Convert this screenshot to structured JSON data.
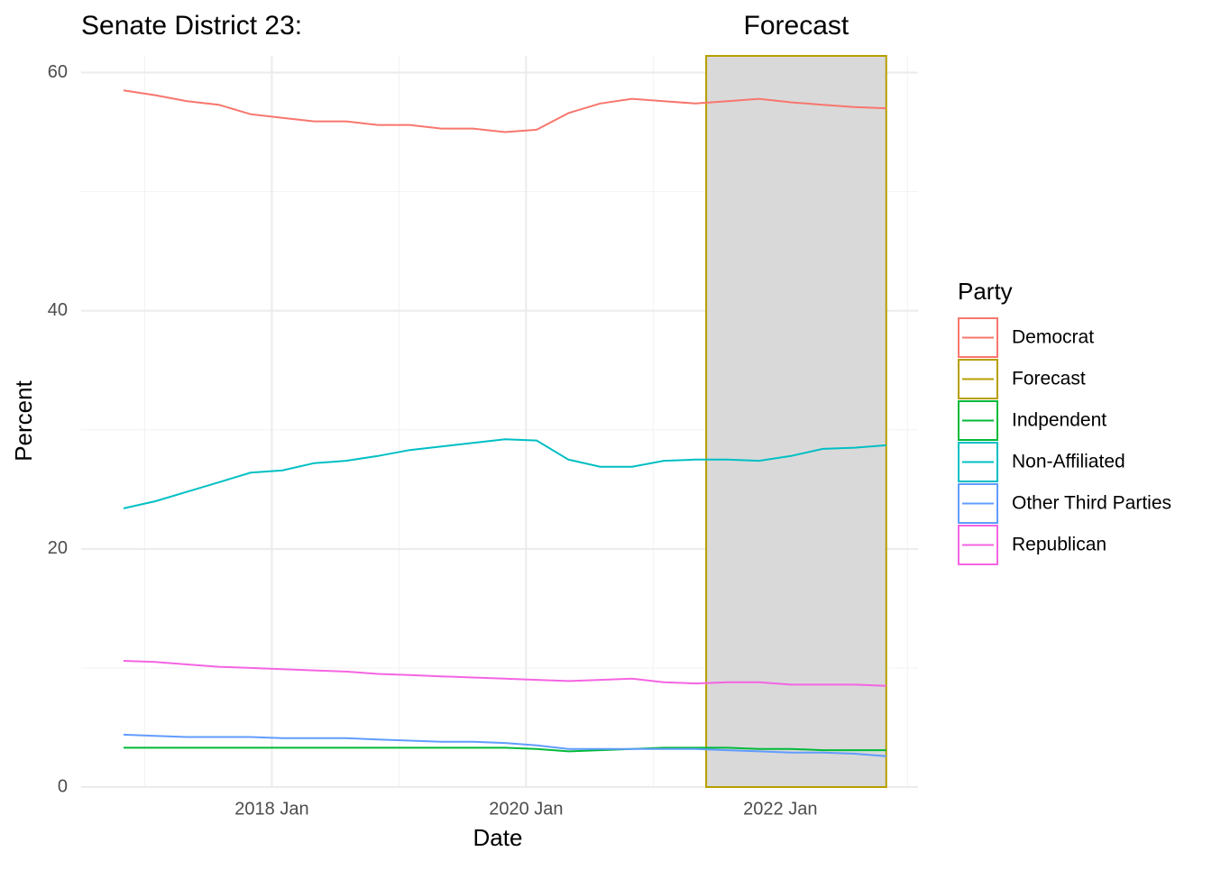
{
  "chart_data": {
    "type": "line",
    "title": "Senate District 23:",
    "x_label": "Date",
    "y_label": "Percent",
    "legend_title": "Party",
    "x": [
      "2016-11",
      "2017-02",
      "2017-05",
      "2017-08",
      "2017-11",
      "2018-02",
      "2018-05",
      "2018-08",
      "2018-11",
      "2019-02",
      "2019-05",
      "2019-08",
      "2019-11",
      "2020-02",
      "2020-05",
      "2020-08",
      "2020-11",
      "2021-02",
      "2021-05",
      "2021-08",
      "2021-11",
      "2022-02",
      "2022-05",
      "2022-08",
      "2022-11"
    ],
    "series": [
      {
        "name": "Democrat",
        "color": "#F8766D",
        "values": [
          58.5,
          58.1,
          57.6,
          57.3,
          56.5,
          56.2,
          55.9,
          55.9,
          55.6,
          55.6,
          55.3,
          55.3,
          55.0,
          55.2,
          56.6,
          57.4,
          57.8,
          57.6,
          57.4,
          57.6,
          57.8,
          57.5,
          57.3,
          57.1,
          57.0
        ]
      },
      {
        "name": "Indpendent",
        "color": "#00BA38",
        "values": [
          3.3,
          3.3,
          3.3,
          3.3,
          3.3,
          3.3,
          3.3,
          3.3,
          3.3,
          3.3,
          3.3,
          3.3,
          3.3,
          3.2,
          3.0,
          3.1,
          3.2,
          3.3,
          3.3,
          3.3,
          3.2,
          3.2,
          3.1,
          3.1,
          3.1
        ]
      },
      {
        "name": "Non-Affiliated",
        "color": "#00BFC4",
        "values": [
          23.4,
          24.0,
          24.8,
          25.6,
          26.4,
          26.6,
          27.2,
          27.4,
          27.8,
          28.3,
          28.6,
          28.9,
          29.2,
          29.1,
          27.5,
          26.9,
          26.9,
          27.4,
          27.5,
          27.5,
          27.4,
          27.8,
          28.4,
          28.5,
          28.7
        ]
      },
      {
        "name": "Other Third Parties",
        "color": "#619CFF",
        "values": [
          4.4,
          4.3,
          4.2,
          4.2,
          4.2,
          4.1,
          4.1,
          4.1,
          4.0,
          3.9,
          3.8,
          3.8,
          3.7,
          3.5,
          3.2,
          3.2,
          3.2,
          3.2,
          3.2,
          3.1,
          3.0,
          2.9,
          2.9,
          2.8,
          2.6
        ]
      },
      {
        "name": "Republican",
        "color": "#F564E3",
        "values": [
          10.6,
          10.5,
          10.3,
          10.1,
          10.0,
          9.9,
          9.8,
          9.7,
          9.5,
          9.4,
          9.3,
          9.2,
          9.1,
          9.0,
          8.9,
          9.0,
          9.1,
          8.8,
          8.7,
          8.8,
          8.8,
          8.6,
          8.6,
          8.6,
          8.5
        ]
      }
    ],
    "forecast": {
      "name": "Forecast",
      "color": "#B79F00",
      "fill": "#D9D9D9",
      "start": "2021-06",
      "end": "2022-11"
    },
    "xlim": [
      "2016-07",
      "2023-02"
    ],
    "xticks": [
      {
        "value": "2018-01",
        "label": "2018 Jan"
      },
      {
        "value": "2020-01",
        "label": "2020 Jan"
      },
      {
        "value": "2022-01",
        "label": "2022 Jan"
      }
    ],
    "xminor": [
      "2017-01",
      "2019-01",
      "2021-01",
      "2023-01"
    ],
    "ylim": [
      0,
      61.4
    ],
    "yticks": [
      0,
      20,
      40,
      60
    ],
    "yminor": [
      10,
      30,
      50
    ],
    "grid": true
  }
}
